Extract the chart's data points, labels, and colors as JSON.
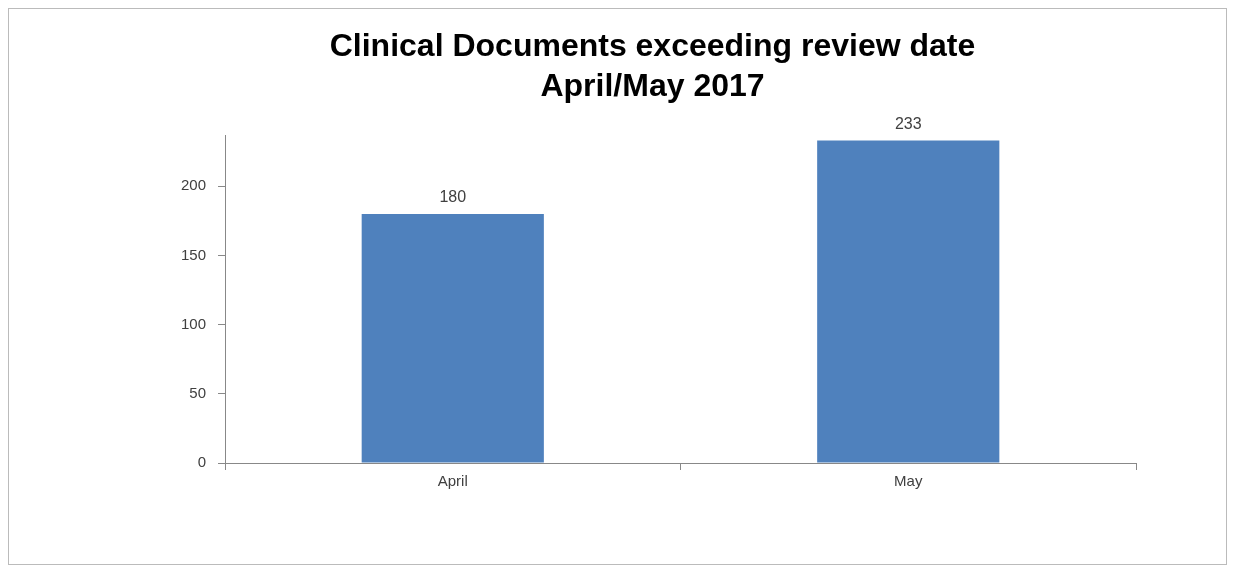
{
  "chart_data": {
    "type": "bar",
    "title": "Clinical Documents exceeding review date\nApril/May 2017",
    "categories": [
      "April",
      "May"
    ],
    "values": [
      180,
      233
    ],
    "color": "#4f81bd",
    "ylim": [
      0,
      237
    ],
    "yticks": [
      0,
      50,
      100,
      150,
      200
    ],
    "grid": false,
    "data_labels": true
  }
}
